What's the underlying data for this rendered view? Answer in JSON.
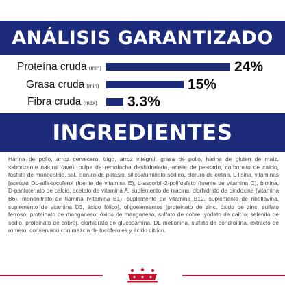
{
  "analysis": {
    "title": "ANÁLISIS GARANTIZADO",
    "rows": [
      {
        "label": "Proteína cruda",
        "unit": "(min)",
        "value_text": "24%",
        "fill": 1.0
      },
      {
        "label": "Grasa cruda",
        "unit": "(min)",
        "value_text": "15%",
        "fill": 0.625
      },
      {
        "label": "Fibra cruda",
        "unit": "(máx)",
        "value_text": "3.3%",
        "fill": 0.1375
      }
    ],
    "bar_color": "#1c2b7a"
  },
  "ingredients": {
    "title": "INGREDIENTES",
    "text": "Harina de pollo, arroz cervecero, trigo, arroz integral, grasa de pollo, harina de gluten de maíz, saborizante natural (ave), pulpa de remolacha deshidratada, aceite de pescado, carbonato de calcio, fosfato de monocalcio, sal, cloruro de potasio, silicoaluminato sódico, cloruro de colina, L-lisina, vitaminas [acetato DL-alfa-tocoferol (fuente de vitamina E), L-ascorbil-2-polifosfato (fuente de vitamina C), biotina, D-pantotenato de calcio, acetato de vitamina A, suplemento de niacina, clorhidrato de piridoxina (vitamina B6), mononitrato de tiamina (vitamina B1), suplemento de vitamina B12, suplemento de riboflavina, suplemento de vitamina D3, ácido fólico], oligoelementos [proteinato de zinc, óxido de zinc, sulfato ferroso, proteinato de manganeso, óxido de manganeso, sulfato de cobre, yodato de calcio, selenito de sodio, proteinato de cobre], clorhidrato de glucosamina, DL-metionina, sulfato de condroitina, extracto de romero, conservado con mezcla de tocoferoles y ácido cítrico."
  },
  "brand": {
    "logo_icon": "royal-canin-crown-logo",
    "accent_color": "#c8102e",
    "primary_color": "#1c2b7a"
  }
}
